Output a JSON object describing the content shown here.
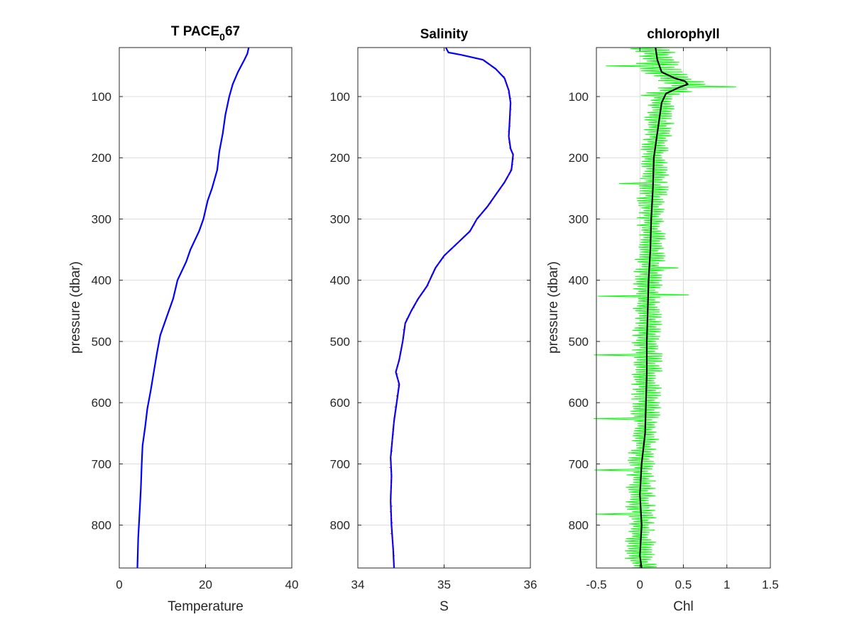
{
  "figure": {
    "title_main": "T PACE",
    "title_sub": "0",
    "title_tail": "67"
  },
  "chart_data": [
    {
      "type": "line",
      "title": "T PACE_067",
      "xlabel": "Temperature",
      "ylabel": "pressure (dbar)",
      "xlim": [
        0,
        40
      ],
      "ylim": [
        20,
        870
      ],
      "y_reversed": true,
      "grid": true,
      "xticks": [
        0,
        20,
        40
      ],
      "yticks": [
        100,
        200,
        300,
        400,
        500,
        600,
        700,
        800
      ],
      "series": [
        {
          "color": "#0000ff",
          "points": [
            [
              30,
              20
            ],
            [
              29.7,
              30
            ],
            [
              29,
              40
            ],
            [
              27.5,
              60
            ],
            [
              26.3,
              80
            ],
            [
              25.5,
              100
            ],
            [
              24.6,
              130
            ],
            [
              24,
              160
            ],
            [
              23.2,
              190
            ],
            [
              22.7,
              220
            ],
            [
              21.5,
              250
            ],
            [
              20.5,
              270
            ],
            [
              19.5,
              300
            ],
            [
              18.5,
              320
            ],
            [
              16.5,
              350
            ],
            [
              15.5,
              370
            ],
            [
              13.5,
              400
            ],
            [
              12.5,
              430
            ],
            [
              11,
              460
            ],
            [
              9.5,
              490
            ],
            [
              8.7,
              520
            ],
            [
              8,
              550
            ],
            [
              7.3,
              580
            ],
            [
              6.5,
              610
            ],
            [
              6,
              640
            ],
            [
              5.4,
              670
            ],
            [
              5.2,
              700
            ],
            [
              5,
              740
            ],
            [
              4.7,
              780
            ],
            [
              4.4,
              820
            ],
            [
              4.2,
              870
            ]
          ]
        }
      ]
    },
    {
      "type": "line",
      "title": "Salinity",
      "xlabel": "S",
      "ylabel": "",
      "xlim": [
        34,
        36
      ],
      "ylim": [
        20,
        870
      ],
      "y_reversed": true,
      "grid": true,
      "xticks": [
        34,
        35,
        36
      ],
      "yticks": [
        100,
        200,
        300,
        400,
        500,
        600,
        700,
        800
      ],
      "series": [
        {
          "color": "#0000ff",
          "points": [
            [
              35.02,
              20
            ],
            [
              35.05,
              28
            ],
            [
              35.2,
              32
            ],
            [
              35.45,
              40
            ],
            [
              35.6,
              55
            ],
            [
              35.7,
              70
            ],
            [
              35.75,
              90
            ],
            [
              35.77,
              110
            ],
            [
              35.76,
              140
            ],
            [
              35.75,
              165
            ],
            [
              35.77,
              185
            ],
            [
              35.8,
              195
            ],
            [
              35.78,
              220
            ],
            [
              35.7,
              240
            ],
            [
              35.6,
              260
            ],
            [
              35.5,
              280
            ],
            [
              35.38,
              300
            ],
            [
              35.3,
              320
            ],
            [
              35.15,
              340
            ],
            [
              35.0,
              360
            ],
            [
              34.9,
              380
            ],
            [
              34.8,
              410
            ],
            [
              34.7,
              430
            ],
            [
              34.62,
              450
            ],
            [
              34.55,
              470
            ],
            [
              34.52,
              500
            ],
            [
              34.48,
              530
            ],
            [
              34.44,
              550
            ],
            [
              34.48,
              570
            ],
            [
              34.45,
              600
            ],
            [
              34.42,
              630
            ],
            [
              34.4,
              660
            ],
            [
              34.38,
              690
            ],
            [
              34.39,
              720
            ],
            [
              34.38,
              760
            ],
            [
              34.39,
              800
            ],
            [
              34.41,
              840
            ],
            [
              34.42,
              870
            ]
          ]
        },
        {
          "color": "#ff0000",
          "style": "noise"
        }
      ]
    },
    {
      "type": "line",
      "title": "chlorophyll",
      "xlabel": "Chl",
      "ylabel": "pressure (dbar)",
      "xlim": [
        -0.5,
        1.5
      ],
      "ylim": [
        20,
        870
      ],
      "y_reversed": true,
      "grid": true,
      "xticks": [
        -0.5,
        0,
        0.5,
        1,
        1.5
      ],
      "yticks": [
        100,
        200,
        300,
        400,
        500,
        600,
        700,
        800
      ],
      "series": [
        {
          "color": "#00ff00",
          "style": "noise-envelope",
          "halfwidth": 0.13
        },
        {
          "color": "#000000",
          "points": [
            [
              0.18,
              20
            ],
            [
              0.2,
              40
            ],
            [
              0.25,
              60
            ],
            [
              0.4,
              70
            ],
            [
              0.52,
              75
            ],
            [
              0.55,
              80
            ],
            [
              0.45,
              85
            ],
            [
              0.3,
              95
            ],
            [
              0.25,
              110
            ],
            [
              0.22,
              140
            ],
            [
              0.19,
              170
            ],
            [
              0.16,
              200
            ],
            [
              0.15,
              250
            ],
            [
              0.13,
              300
            ],
            [
              0.12,
              350
            ],
            [
              0.1,
              400
            ],
            [
              0.09,
              450
            ],
            [
              0.08,
              500
            ],
            [
              0.08,
              550
            ],
            [
              0.07,
              600
            ],
            [
              0.06,
              650
            ],
            [
              0.02,
              700
            ],
            [
              0.0,
              750
            ],
            [
              0.02,
              800
            ],
            [
              0.0,
              850
            ],
            [
              0.02,
              870
            ]
          ]
        }
      ]
    }
  ]
}
